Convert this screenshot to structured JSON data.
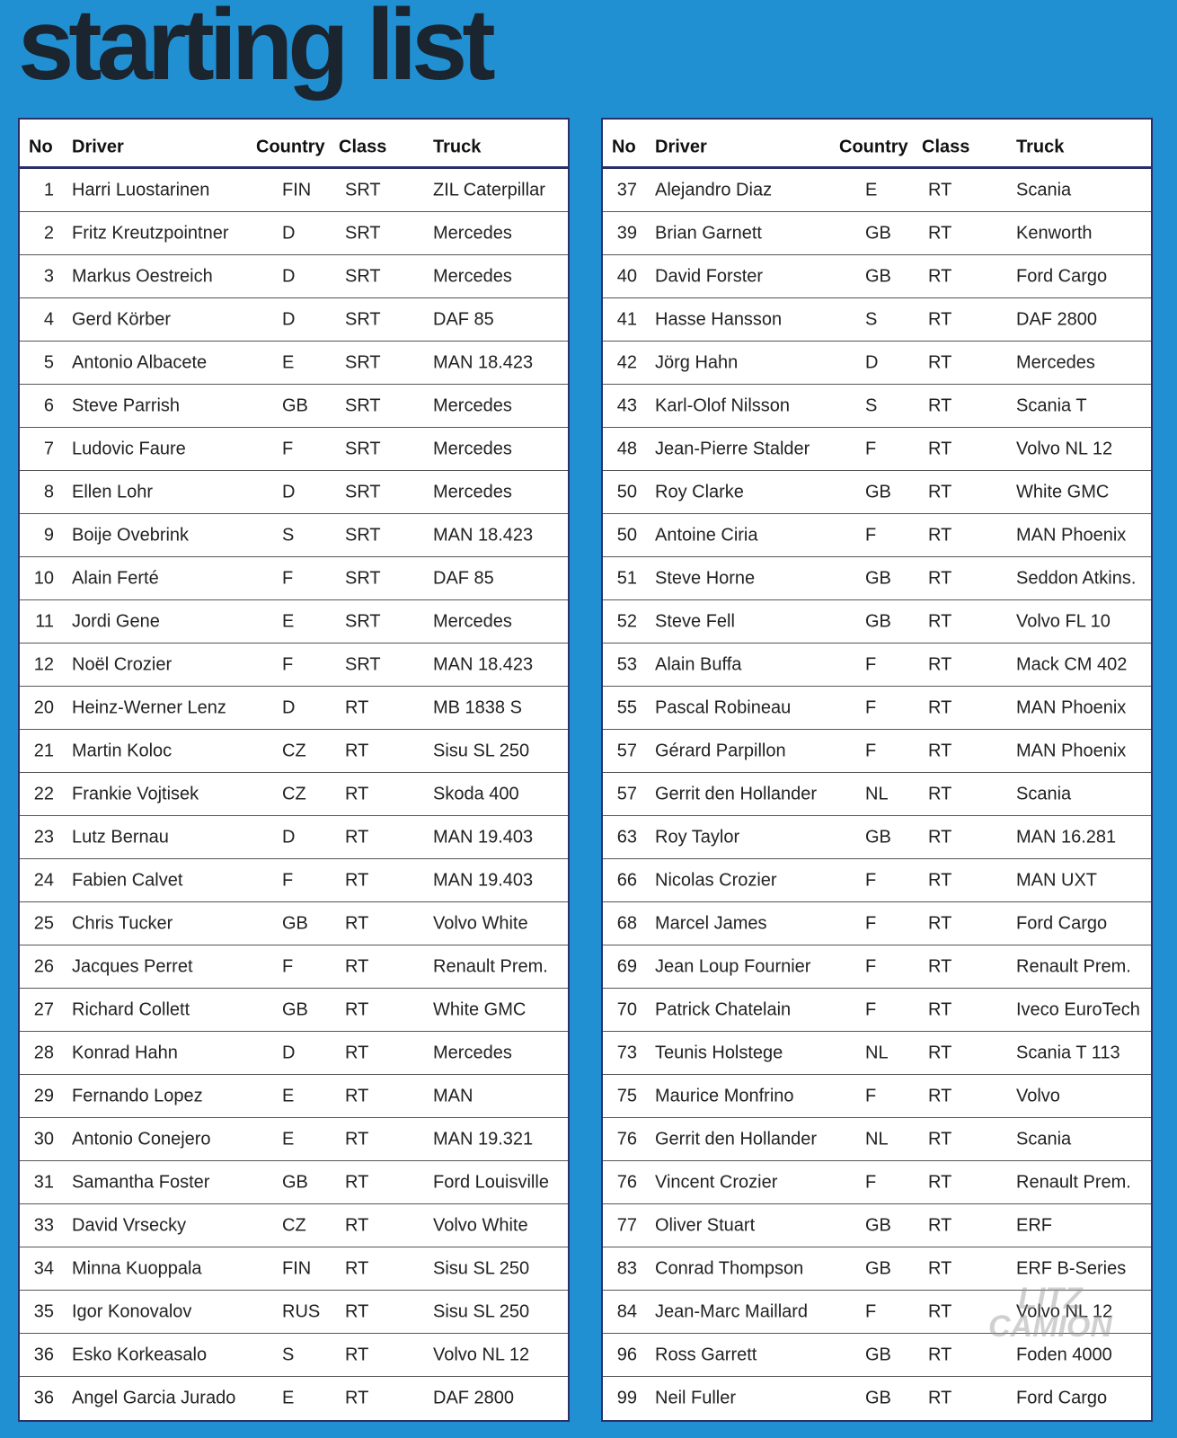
{
  "title": "starting list",
  "watermark": [
    "LITZ",
    "CAMION"
  ],
  "colors": {
    "background": "#2190d3",
    "title": "#1a2530",
    "border": "#2a2f6a"
  },
  "headers": {
    "no": "No",
    "driver": "Driver",
    "country": "Country",
    "class": "Class",
    "truck": "Truck"
  },
  "left_table": [
    [
      "1",
      "Harri Luostarinen",
      "FIN",
      "SRT",
      "ZIL Caterpillar"
    ],
    [
      "2",
      "Fritz Kreutzpointner",
      "D",
      "SRT",
      "Mercedes"
    ],
    [
      "3",
      "Markus Oestreich",
      "D",
      "SRT",
      "Mercedes"
    ],
    [
      "4",
      "Gerd Körber",
      "D",
      "SRT",
      "DAF 85"
    ],
    [
      "5",
      "Antonio Albacete",
      "E",
      "SRT",
      "MAN 18.423"
    ],
    [
      "6",
      "Steve Parrish",
      "GB",
      "SRT",
      "Mercedes"
    ],
    [
      "7",
      "Ludovic Faure",
      "F",
      "SRT",
      "Mercedes"
    ],
    [
      "8",
      "Ellen Lohr",
      "D",
      "SRT",
      "Mercedes"
    ],
    [
      "9",
      "Boije Ovebrink",
      "S",
      "SRT",
      "MAN 18.423"
    ],
    [
      "10",
      "Alain Ferté",
      "F",
      "SRT",
      "DAF 85"
    ],
    [
      "11",
      "Jordi Gene",
      "E",
      "SRT",
      "Mercedes"
    ],
    [
      "12",
      "Noël Crozier",
      "F",
      "SRT",
      "MAN 18.423"
    ],
    [
      "20",
      "Heinz-Werner Lenz",
      "D",
      "RT",
      "MB 1838 S"
    ],
    [
      "21",
      "Martin Koloc",
      "CZ",
      "RT",
      "Sisu SL 250"
    ],
    [
      "22",
      "Frankie Vojtisek",
      "CZ",
      "RT",
      "Skoda 400"
    ],
    [
      "23",
      "Lutz Bernau",
      "D",
      "RT",
      "MAN 19.403"
    ],
    [
      "24",
      "Fabien Calvet",
      "F",
      "RT",
      "MAN 19.403"
    ],
    [
      "25",
      "Chris Tucker",
      "GB",
      "RT",
      "Volvo White"
    ],
    [
      "26",
      "Jacques Perret",
      "F",
      "RT",
      "Renault Prem."
    ],
    [
      "27",
      "Richard Collett",
      "GB",
      "RT",
      "White GMC"
    ],
    [
      "28",
      "Konrad Hahn",
      "D",
      "RT",
      "Mercedes"
    ],
    [
      "29",
      "Fernando Lopez",
      "E",
      "RT",
      "MAN"
    ],
    [
      "30",
      "Antonio Conejero",
      "E",
      "RT",
      "MAN 19.321"
    ],
    [
      "31",
      "Samantha Foster",
      "GB",
      "RT",
      "Ford Louisville"
    ],
    [
      "33",
      "David Vrsecky",
      "CZ",
      "RT",
      "Volvo White"
    ],
    [
      "34",
      "Minna Kuoppala",
      "FIN",
      "RT",
      "Sisu SL 250"
    ],
    [
      "35",
      "Igor Konovalov",
      "RUS",
      "RT",
      "Sisu SL 250"
    ],
    [
      "36",
      "Esko Korkeasalo",
      "S",
      "RT",
      "Volvo NL 12"
    ],
    [
      "36",
      "Angel Garcia Jurado",
      "E",
      "RT",
      "DAF 2800"
    ]
  ],
  "right_table": [
    [
      "37",
      "Alejandro Diaz",
      "E",
      "RT",
      "Scania"
    ],
    [
      "39",
      "Brian Garnett",
      "GB",
      "RT",
      "Kenworth"
    ],
    [
      "40",
      "David Forster",
      "GB",
      "RT",
      "Ford Cargo"
    ],
    [
      "41",
      "Hasse Hansson",
      "S",
      "RT",
      "DAF 2800"
    ],
    [
      "42",
      "Jörg Hahn",
      "D",
      "RT",
      "Mercedes"
    ],
    [
      "43",
      "Karl-Olof Nilsson",
      "S",
      "RT",
      "Scania T"
    ],
    [
      "48",
      "Jean-Pierre Stalder",
      "F",
      "RT",
      "Volvo NL 12"
    ],
    [
      "50",
      "Roy Clarke",
      "GB",
      "RT",
      "White GMC"
    ],
    [
      "50",
      "Antoine Ciria",
      "F",
      "RT",
      "MAN Phoenix"
    ],
    [
      "51",
      "Steve Horne",
      "GB",
      "RT",
      "Seddon Atkins."
    ],
    [
      "52",
      "Steve Fell",
      "GB",
      "RT",
      "Volvo FL 10"
    ],
    [
      "53",
      "Alain Buffa",
      "F",
      "RT",
      "Mack CM 402"
    ],
    [
      "55",
      "Pascal Robineau",
      "F",
      "RT",
      "MAN Phoenix"
    ],
    [
      "57",
      "Gérard Parpillon",
      "F",
      "RT",
      "MAN Phoenix"
    ],
    [
      "57",
      "Gerrit den Hollander",
      "NL",
      "RT",
      "Scania"
    ],
    [
      "63",
      "Roy Taylor",
      "GB",
      "RT",
      "MAN 16.281"
    ],
    [
      "66",
      "Nicolas Crozier",
      "F",
      "RT",
      "MAN UXT"
    ],
    [
      "68",
      "Marcel James",
      "F",
      "RT",
      "Ford Cargo"
    ],
    [
      "69",
      "Jean Loup Fournier",
      "F",
      "RT",
      "Renault Prem."
    ],
    [
      "70",
      "Patrick Chatelain",
      "F",
      "RT",
      "Iveco EuroTech"
    ],
    [
      "73",
      "Teunis Holstege",
      "NL",
      "RT",
      "Scania T 113"
    ],
    [
      "75",
      "Maurice Monfrino",
      "F",
      "RT",
      "Volvo"
    ],
    [
      "76",
      "Gerrit den Hollander",
      "NL",
      "RT",
      "Scania"
    ],
    [
      "76",
      "Vincent Crozier",
      "F",
      "RT",
      "Renault Prem."
    ],
    [
      "77",
      "Oliver Stuart",
      "GB",
      "RT",
      "ERF"
    ],
    [
      "83",
      "Conrad Thompson",
      "GB",
      "RT",
      "ERF B-Series"
    ],
    [
      "84",
      "Jean-Marc Maillard",
      "F",
      "RT",
      "Volvo NL 12"
    ],
    [
      "96",
      "Ross Garrett",
      "GB",
      "RT",
      "Foden 4000"
    ],
    [
      "99",
      "Neil Fuller",
      "GB",
      "RT",
      "Ford Cargo"
    ]
  ]
}
